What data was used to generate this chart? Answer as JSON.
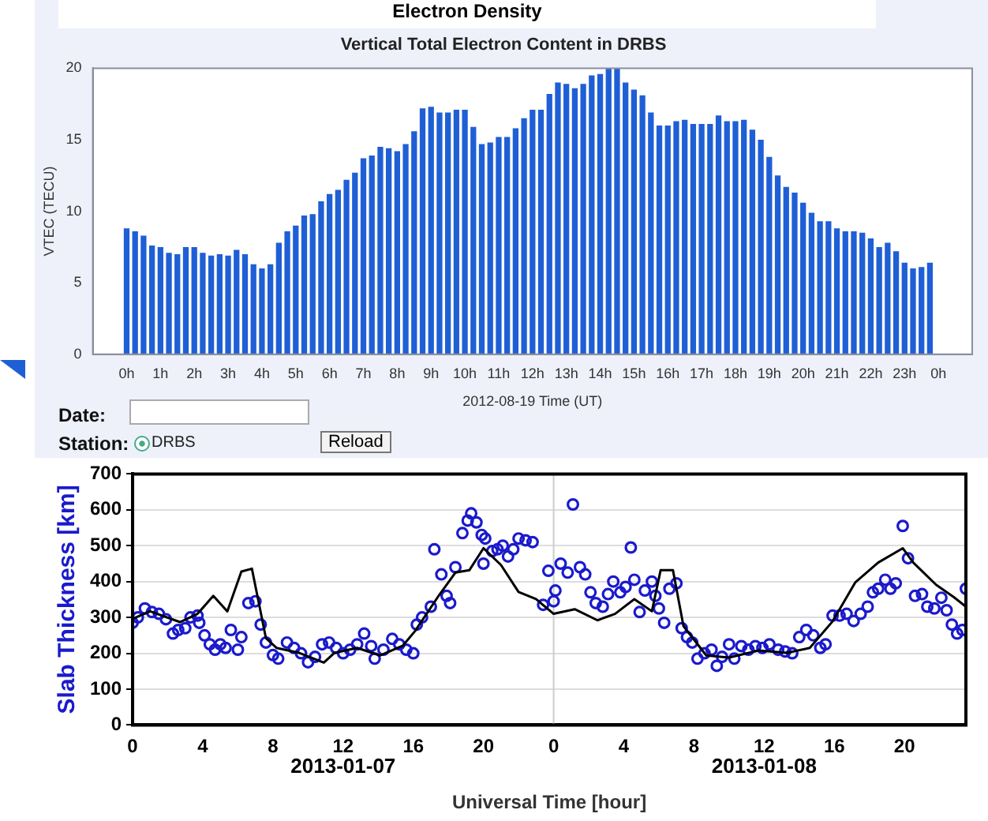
{
  "chart_data": [
    {
      "type": "bar",
      "title": "Electron Density",
      "subtitle": "Vertical Total Electron Content in DRBS",
      "xlabel": "2012-08-19 Time (UT)",
      "ylabel": "VTEC (TECU)",
      "annotations": [
        "Date:",
        "Station:",
        "DRBS",
        "Reload"
      ],
      "x": [
        "2012-08-19T00:00",
        "2012-08-19T00:15",
        "2012-08-19T00:30",
        "2012-08-19T00:45",
        "2012-08-19T01:00",
        "2012-08-19T01:15",
        "2012-08-19T01:30",
        "2012-08-19T01:45",
        "2012-08-19T02:00",
        "2012-08-19T02:15",
        "2012-08-19T02:30",
        "2012-08-19T02:45",
        "2012-08-19T03:00",
        "2012-08-19T03:15",
        "2012-08-19T03:30",
        "2012-08-19T03:45",
        "2012-08-19T04:00",
        "2012-08-19T04:15",
        "2012-08-19T04:30",
        "2012-08-19T04:45",
        "2012-08-19T05:00",
        "2012-08-19T05:15",
        "2012-08-19T05:30",
        "2012-08-19T05:45",
        "2012-08-19T06:00",
        "2012-08-19T06:15",
        "2012-08-19T06:30",
        "2012-08-19T06:45",
        "2012-08-19T07:00",
        "2012-08-19T07:15",
        "2012-08-19T07:30",
        "2012-08-19T07:45",
        "2012-08-19T08:00",
        "2012-08-19T08:15",
        "2012-08-19T08:30",
        "2012-08-19T08:45",
        "2012-08-19T09:00",
        "2012-08-19T09:15",
        "2012-08-19T09:30",
        "2012-08-19T09:45",
        "2012-08-19T10:00",
        "2012-08-19T10:15",
        "2012-08-19T10:30",
        "2012-08-19T10:45",
        "2012-08-19T11:00",
        "2012-08-19T11:15",
        "2012-08-19T11:30",
        "2012-08-19T11:45",
        "2012-08-19T12:00",
        "2012-08-19T12:15",
        "2012-08-19T12:30",
        "2012-08-19T12:45",
        "2012-08-19T13:00",
        "2012-08-19T13:15",
        "2012-08-19T13:30",
        "2012-08-19T13:45",
        "2012-08-19T14:00",
        "2012-08-19T14:15",
        "2012-08-19T14:30",
        "2012-08-19T14:45",
        "2012-08-19T15:00",
        "2012-08-19T15:15",
        "2012-08-19T15:30",
        "2012-08-19T15:45",
        "2012-08-19T16:00",
        "2012-08-19T16:15",
        "2012-08-19T16:30",
        "2012-08-19T16:45",
        "2012-08-19T17:00",
        "2012-08-19T17:15",
        "2012-08-19T17:30",
        "2012-08-19T17:45",
        "2012-08-19T18:00",
        "2012-08-19T18:15",
        "2012-08-19T18:30",
        "2012-08-19T18:45",
        "2012-08-19T19:00",
        "2012-08-19T19:15",
        "2012-08-19T19:30",
        "2012-08-19T19:45",
        "2012-08-19T20:00",
        "2012-08-19T20:15",
        "2012-08-19T20:30",
        "2012-08-19T20:45",
        "2012-08-19T21:00",
        "2012-08-19T21:15",
        "2012-08-19T21:30",
        "2012-08-19T21:45",
        "2012-08-19T22:00",
        "2012-08-19T22:15",
        "2012-08-19T22:30",
        "2012-08-19T22:45",
        "2012-08-19T23:00",
        "2012-08-19T23:15",
        "2012-08-19T23:30",
        "2012-08-19T23:45"
      ],
      "values": [
        8.8,
        8.6,
        8.3,
        7.6,
        7.5,
        7.1,
        7.0,
        7.5,
        7.5,
        7.1,
        6.9,
        7.0,
        6.9,
        7.3,
        7.0,
        6.3,
        6.0,
        6.3,
        7.8,
        8.6,
        9.0,
        9.7,
        9.8,
        10.7,
        11.2,
        11.5,
        12.2,
        12.7,
        13.7,
        13.9,
        14.5,
        14.4,
        14.2,
        14.7,
        15.6,
        17.2,
        17.3,
        16.9,
        16.9,
        17.1,
        17.1,
        15.9,
        14.7,
        14.8,
        15.2,
        15.2,
        15.8,
        16.5,
        17.1,
        17.1,
        18.2,
        19.0,
        18.9,
        18.6,
        18.9,
        19.5,
        19.6,
        20.0,
        20.0,
        19.0,
        18.5,
        18.1,
        16.9,
        16.0,
        16.0,
        16.3,
        16.4,
        16.1,
        16.1,
        16.1,
        16.7,
        16.3,
        16.3,
        16.4,
        15.7,
        15.0,
        13.8,
        12.5,
        11.7,
        11.3,
        10.6,
        9.9,
        9.3,
        9.3,
        8.8,
        8.6,
        8.6,
        8.5,
        8.1,
        7.5,
        7.8,
        7.2,
        6.4,
        6.0,
        6.1,
        6.4
      ],
      "color": "#1f5fd6",
      "xlim": [
        "2012-08-18T23:00",
        "2012-08-20T01:00"
      ],
      "xticks": [
        {
          "value": "2012-08-19T00:00",
          "label": "0h"
        },
        {
          "value": "2012-08-19T01:00",
          "label": "1h"
        },
        {
          "value": "2012-08-19T02:00",
          "label": "2h"
        },
        {
          "value": "2012-08-19T03:00",
          "label": "3h"
        },
        {
          "value": "2012-08-19T04:00",
          "label": "4h"
        },
        {
          "value": "2012-08-19T05:00",
          "label": "5h"
        },
        {
          "value": "2012-08-19T06:00",
          "label": "6h"
        },
        {
          "value": "2012-08-19T07:00",
          "label": "7h"
        },
        {
          "value": "2012-08-19T08:00",
          "label": "8h"
        },
        {
          "value": "2012-08-19T09:00",
          "label": "9h"
        },
        {
          "value": "2012-08-19T10:00",
          "label": "10h"
        },
        {
          "value": "2012-08-19T11:00",
          "label": "11h"
        },
        {
          "value": "2012-08-19T12:00",
          "label": "12h"
        },
        {
          "value": "2012-08-19T13:00",
          "label": "13h"
        },
        {
          "value": "2012-08-19T14:00",
          "label": "14h"
        },
        {
          "value": "2012-08-19T15:00",
          "label": "15h"
        },
        {
          "value": "2012-08-19T16:00",
          "label": "16h"
        },
        {
          "value": "2012-08-19T17:00",
          "label": "17h"
        },
        {
          "value": "2012-08-19T18:00",
          "label": "18h"
        },
        {
          "value": "2012-08-19T19:00",
          "label": "19h"
        },
        {
          "value": "2012-08-19T20:00",
          "label": "20h"
        },
        {
          "value": "2012-08-19T21:00",
          "label": "21h"
        },
        {
          "value": "2012-08-19T22:00",
          "label": "22h"
        },
        {
          "value": "2012-08-19T23:00",
          "label": "23h"
        },
        {
          "value": "2012-08-20T00:00",
          "label": "0h"
        }
      ],
      "ylim": [
        0,
        20
      ],
      "yticks": [
        0,
        5,
        10,
        15,
        20
      ],
      "grid": false,
      "legend": false
    },
    {
      "type": "scatter",
      "xlabel": "Universal Time [hour]",
      "ylabel": "Slab Thickness [km]",
      "annotations": [
        "2013-01-07",
        "2013-01-08"
      ],
      "series": [
        {
          "type": "line",
          "color": "#000000",
          "marker": "none",
          "x": [
            "2013-01-07T00:00",
            "2013-01-07T01:00",
            "2013-01-07T02:42",
            "2013-01-07T03:42",
            "2013-01-07T04:36",
            "2013-01-07T05:24",
            "2013-01-07T06:12",
            "2013-01-07T06:48",
            "2013-01-07T07:36",
            "2013-01-07T08:12",
            "2013-01-07T09:30",
            "2013-01-07T10:54",
            "2013-01-07T11:30",
            "2013-01-07T12:48",
            "2013-01-07T14:06",
            "2013-01-07T15:24",
            "2013-01-07T16:06",
            "2013-01-07T17:24",
            "2013-01-07T18:24",
            "2013-01-07T19:12",
            "2013-01-07T20:00",
            "2013-01-07T21:00",
            "2013-01-07T22:00",
            "2013-01-07T23:00",
            "2013-01-08T00:00",
            "2013-01-08T01:12",
            "2013-01-08T02:30",
            "2013-01-08T03:30",
            "2013-01-08T04:36",
            "2013-01-08T05:36",
            "2013-01-08T06:06",
            "2013-01-08T06:48",
            "2013-01-08T07:24",
            "2013-01-08T08:42",
            "2013-01-08T10:00",
            "2013-01-08T11:42",
            "2013-01-08T13:18",
            "2013-01-08T14:36",
            "2013-01-08T15:54",
            "2013-01-08T17:12",
            "2013-01-08T18:30",
            "2013-01-08T19:54",
            "2013-01-08T20:30",
            "2013-01-08T21:48",
            "2013-01-08T22:48",
            "2013-01-08T23:30"
          ],
          "values": [
            296,
            317,
            287,
            310,
            360,
            317,
            428,
            436,
            242,
            215,
            201,
            174,
            201,
            215,
            194,
            221,
            262,
            357,
            425,
            432,
            493,
            446,
            371,
            351,
            310,
            323,
            292,
            310,
            351,
            317,
            432,
            432,
            276,
            194,
            188,
            208,
            201,
            215,
            289,
            398,
            453,
            493,
            453,
            391,
            357,
            330
          ]
        },
        {
          "type": "scatter",
          "color": "#1a1acc",
          "marker": "circle",
          "x": [
            "2013-01-07T00:00",
            "2013-01-07T00:18",
            "2013-01-07T00:42",
            "2013-01-07T01:06",
            "2013-01-07T01:30",
            "2013-01-07T01:54",
            "2013-01-07T02:18",
            "2013-01-07T02:36",
            "2013-01-07T03:00",
            "2013-01-07T03:18",
            "2013-01-07T03:42",
            "2013-01-07T03:48",
            "2013-01-07T04:06",
            "2013-01-07T04:24",
            "2013-01-07T04:42",
            "2013-01-07T05:00",
            "2013-01-07T05:18",
            "2013-01-07T05:36",
            "2013-01-07T06:00",
            "2013-01-07T06:12",
            "2013-01-07T06:36",
            "2013-01-07T07:00",
            "2013-01-07T07:18",
            "2013-01-07T07:36",
            "2013-01-07T08:00",
            "2013-01-07T08:18",
            "2013-01-07T08:48",
            "2013-01-07T09:12",
            "2013-01-07T09:36",
            "2013-01-07T10:00",
            "2013-01-07T10:24",
            "2013-01-07T10:48",
            "2013-01-07T11:12",
            "2013-01-07T11:36",
            "2013-01-07T12:00",
            "2013-01-07T12:24",
            "2013-01-07T12:48",
            "2013-01-07T13:12",
            "2013-01-07T13:36",
            "2013-01-07T13:48",
            "2013-01-07T14:18",
            "2013-01-07T14:48",
            "2013-01-07T15:12",
            "2013-01-07T15:36",
            "2013-01-07T16:00",
            "2013-01-07T16:12",
            "2013-01-07T16:30",
            "2013-01-07T17:00",
            "2013-01-07T17:12",
            "2013-01-07T17:36",
            "2013-01-07T17:54",
            "2013-01-07T18:06",
            "2013-01-07T18:24",
            "2013-01-07T18:48",
            "2013-01-07T19:06",
            "2013-01-07T19:18",
            "2013-01-07T19:36",
            "2013-01-07T19:54",
            "2013-01-07T20:06",
            "2013-01-07T20:00",
            "2013-01-07T20:30",
            "2013-01-07T20:48",
            "2013-01-07T21:06",
            "2013-01-07T21:24",
            "2013-01-07T21:42",
            "2013-01-07T22:00",
            "2013-01-07T22:24",
            "2013-01-07T22:48",
            "2013-01-07T23:24",
            "2013-01-07T23:42",
            "2013-01-08T00:06",
            "2013-01-08T00:00",
            "2013-01-08T00:24",
            "2013-01-08T00:48",
            "2013-01-08T01:06",
            "2013-01-08T01:30",
            "2013-01-08T01:48",
            "2013-01-08T02:06",
            "2013-01-08T02:24",
            "2013-01-08T02:48",
            "2013-01-08T03:06",
            "2013-01-08T03:24",
            "2013-01-08T03:48",
            "2013-01-08T04:06",
            "2013-01-08T04:24",
            "2013-01-08T04:36",
            "2013-01-08T04:54",
            "2013-01-08T05:12",
            "2013-01-08T05:36",
            "2013-01-08T05:48",
            "2013-01-08T06:00",
            "2013-01-08T06:18",
            "2013-01-08T06:36",
            "2013-01-08T07:00",
            "2013-01-08T07:18",
            "2013-01-08T07:36",
            "2013-01-08T07:54",
            "2013-01-08T08:12",
            "2013-01-08T08:36",
            "2013-01-08T09:00",
            "2013-01-08T09:18",
            "2013-01-08T09:36",
            "2013-01-08T10:00",
            "2013-01-08T10:18",
            "2013-01-08T10:42",
            "2013-01-08T11:06",
            "2013-01-08T11:30",
            "2013-01-08T11:54",
            "2013-01-08T12:18",
            "2013-01-08T12:48",
            "2013-01-08T13:12",
            "2013-01-08T13:36",
            "2013-01-08T14:00",
            "2013-01-08T14:24",
            "2013-01-08T14:48",
            "2013-01-08T15:12",
            "2013-01-08T15:30",
            "2013-01-08T15:54",
            "2013-01-08T16:18",
            "2013-01-08T16:42",
            "2013-01-08T17:06",
            "2013-01-08T17:30",
            "2013-01-08T17:54",
            "2013-01-08T18:12",
            "2013-01-08T18:30",
            "2013-01-08T18:54",
            "2013-01-08T19:12",
            "2013-01-08T19:30",
            "2013-01-08T19:54",
            "2013-01-08T20:12",
            "2013-01-08T20:36",
            "2013-01-08T21:00",
            "2013-01-08T21:18",
            "2013-01-08T21:42",
            "2013-01-08T22:06",
            "2013-01-08T22:24",
            "2013-01-08T22:42",
            "2013-01-08T23:00",
            "2013-01-08T23:18",
            "2013-01-08T23:30"
          ],
          "values": [
            285,
            300,
            325,
            315,
            310,
            295,
            255,
            265,
            270,
            300,
            305,
            285,
            250,
            225,
            210,
            225,
            215,
            265,
            210,
            245,
            340,
            345,
            280,
            230,
            195,
            185,
            230,
            215,
            200,
            175,
            190,
            225,
            230,
            215,
            200,
            210,
            225,
            255,
            220,
            185,
            210,
            240,
            225,
            210,
            200,
            280,
            300,
            330,
            490,
            420,
            360,
            340,
            440,
            535,
            570,
            590,
            565,
            530,
            520,
            450,
            485,
            490,
            500,
            470,
            490,
            520,
            515,
            510,
            335,
            430,
            375,
            345,
            450,
            425,
            615,
            440,
            420,
            370,
            340,
            330,
            365,
            400,
            370,
            385,
            495,
            405,
            315,
            375,
            400,
            360,
            325,
            285,
            380,
            395,
            270,
            245,
            230,
            185,
            200,
            210,
            165,
            190,
            225,
            185,
            220,
            210,
            220,
            215,
            225,
            210,
            205,
            200,
            245,
            265,
            250,
            215,
            225,
            305,
            305,
            310,
            290,
            310,
            330,
            370,
            380,
            405,
            380,
            395,
            555,
            465,
            360,
            365,
            330,
            325,
            355,
            320,
            280,
            255,
            265,
            380
          ]
        }
      ],
      "xlim": [
        "2013-01-07T00:00",
        "2013-01-08T23:30"
      ],
      "xticks": [
        {
          "value": "2013-01-07T00:00",
          "label": "0"
        },
        {
          "value": "2013-01-07T04:00",
          "label": "4"
        },
        {
          "value": "2013-01-07T08:00",
          "label": "8"
        },
        {
          "value": "2013-01-07T12:00",
          "label": "12"
        },
        {
          "value": "2013-01-07T16:00",
          "label": "16"
        },
        {
          "value": "2013-01-07T20:00",
          "label": "20"
        },
        {
          "value": "2013-01-08T00:00",
          "label": "0"
        },
        {
          "value": "2013-01-08T04:00",
          "label": "4"
        },
        {
          "value": "2013-01-08T08:00",
          "label": "8"
        },
        {
          "value": "2013-01-08T12:00",
          "label": "12"
        },
        {
          "value": "2013-01-08T16:00",
          "label": "16"
        },
        {
          "value": "2013-01-08T20:00",
          "label": "20"
        }
      ],
      "ylim": [
        0,
        700
      ],
      "yticks": [
        0,
        100,
        200,
        300,
        400,
        500,
        600,
        700
      ],
      "grid": "y",
      "legend": false,
      "ref_lines": [
        {
          "axis": "x",
          "value": "2013-01-08T00:00",
          "color": "#cccccc"
        }
      ]
    }
  ]
}
